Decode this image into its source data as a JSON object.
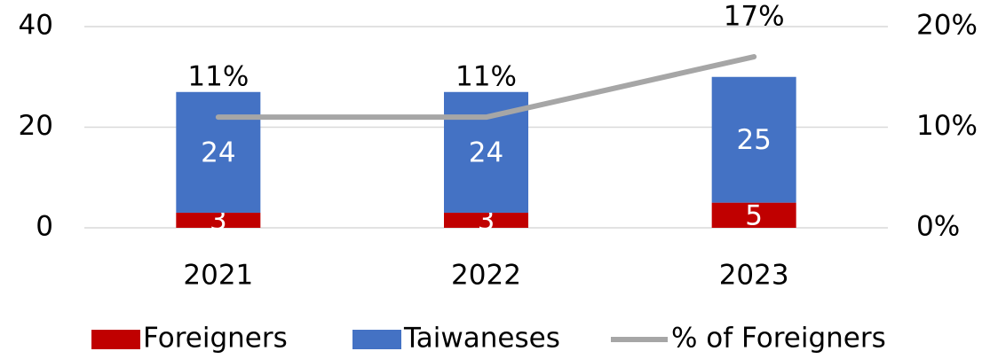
{
  "chart_data": {
    "type": "bar",
    "stacked": true,
    "categories": [
      "2021",
      "2022",
      "2023"
    ],
    "series": [
      {
        "name": "Foreigners",
        "color": "#c00000",
        "values": [
          3,
          3,
          5
        ]
      },
      {
        "name": "Taiwaneses",
        "color": "#4472c4",
        "values": [
          24,
          24,
          25
        ]
      },
      {
        "name": "% of Foreigners",
        "type": "line",
        "axis": "y2",
        "color": "#a6a6a6",
        "values": [
          11,
          11,
          17
        ],
        "value_labels": [
          "11%",
          "11%",
          "17%"
        ]
      }
    ],
    "ylim": [
      0,
      40
    ],
    "yticks": [
      0,
      20,
      40
    ],
    "y2lim": [
      0,
      20
    ],
    "y2ticks": [
      {
        "value": 0,
        "label": "0%"
      },
      {
        "value": 10,
        "label": "10%"
      },
      {
        "value": 20,
        "label": "20%"
      }
    ],
    "grid": true,
    "legend": "bottom"
  }
}
